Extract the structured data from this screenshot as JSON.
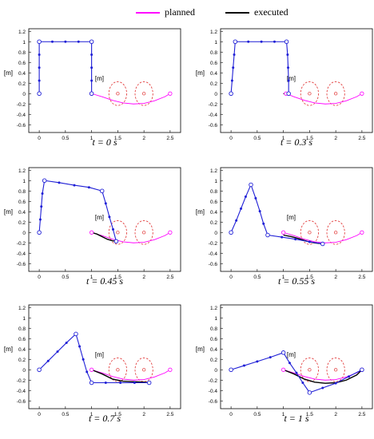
{
  "legend": {
    "planned_label": "planned",
    "executed_label": "executed",
    "planned_color": "#ff00ff",
    "executed_color": "#000000"
  },
  "colors": {
    "arm": "#1f1fd6",
    "obstacle": "#e03030",
    "axis": "#000000"
  },
  "chart_data": [
    {
      "type": "line",
      "caption": "t = 0 s",
      "xlabel": "[m]",
      "ylabel": "[m]",
      "xlim": [
        -0.2,
        2.7
      ],
      "ylim": [
        -0.75,
        1.25
      ],
      "xticks": [
        0,
        0.5,
        1,
        1.5,
        2,
        2.5
      ],
      "yticks": [
        -0.6,
        -0.4,
        -0.2,
        0,
        0.2,
        0.4,
        0.6,
        0.8,
        1,
        1.2
      ],
      "obstacles": [
        {
          "x": 1.5,
          "y": 0,
          "r": 0.17
        },
        {
          "x": 2.0,
          "y": 0,
          "r": 0.17
        }
      ],
      "series": [
        {
          "name": "planned",
          "x": [
            1.0,
            1.2,
            1.4,
            1.6,
            1.8,
            2.0,
            2.2,
            2.4,
            2.5
          ],
          "y": [
            0.0,
            -0.06,
            -0.13,
            -0.18,
            -0.2,
            -0.19,
            -0.14,
            -0.06,
            0.0
          ]
        },
        {
          "name": "executed",
          "x": [],
          "y": []
        }
      ],
      "arm": {
        "x": [
          0,
          0,
          0,
          0,
          0,
          0.25,
          0.5,
          0.75,
          1.0,
          1.0,
          1.0,
          1.0,
          1.0
        ],
        "y": [
          0,
          0.25,
          0.5,
          0.75,
          1.0,
          1.0,
          1.0,
          1.0,
          1.0,
          0.75,
          0.5,
          0.25,
          0.0
        ]
      }
    },
    {
      "type": "line",
      "caption": "t = 0.3 s",
      "xlabel": "[m]",
      "ylabel": "[m]",
      "xlim": [
        -0.2,
        2.7
      ],
      "ylim": [
        -0.75,
        1.25
      ],
      "xticks": [
        0,
        0.5,
        1,
        1.5,
        2,
        2.5
      ],
      "yticks": [
        -0.6,
        -0.4,
        -0.2,
        0,
        0.2,
        0.4,
        0.6,
        0.8,
        1,
        1.2
      ],
      "obstacles": [
        {
          "x": 1.5,
          "y": 0,
          "r": 0.17
        },
        {
          "x": 2.0,
          "y": 0,
          "r": 0.17
        }
      ],
      "series": [
        {
          "name": "planned",
          "x": [
            1.05,
            1.2,
            1.4,
            1.6,
            1.8,
            2.0,
            2.2,
            2.4,
            2.5
          ],
          "y": [
            0.0,
            -0.06,
            -0.13,
            -0.18,
            -0.2,
            -0.19,
            -0.14,
            -0.06,
            0.0
          ]
        },
        {
          "name": "executed",
          "x": [
            1.0,
            1.05,
            1.12
          ],
          "y": [
            0.0,
            -0.01,
            -0.02
          ]
        }
      ],
      "arm": {
        "x": [
          0,
          0.02,
          0.04,
          0.06,
          0.08,
          0.33,
          0.58,
          0.83,
          1.06,
          1.08,
          1.09,
          1.1,
          1.1
        ],
        "y": [
          0,
          0.25,
          0.5,
          0.75,
          1.0,
          1.0,
          1.0,
          1.0,
          1.0,
          0.75,
          0.5,
          0.25,
          0.0
        ]
      }
    },
    {
      "type": "line",
      "caption": "t = 0.45 s",
      "xlabel": "[m]",
      "ylabel": "[m]",
      "xlim": [
        -0.2,
        2.7
      ],
      "ylim": [
        -0.75,
        1.25
      ],
      "xticks": [
        0,
        0.5,
        1,
        1.5,
        2,
        2.5
      ],
      "yticks": [
        -0.6,
        -0.4,
        -0.2,
        0,
        0.2,
        0.4,
        0.6,
        0.8,
        1,
        1.2
      ],
      "obstacles": [
        {
          "x": 1.5,
          "y": 0,
          "r": 0.17
        },
        {
          "x": 2.0,
          "y": 0,
          "r": 0.17
        }
      ],
      "series": [
        {
          "name": "planned",
          "x": [
            1.0,
            1.2,
            1.4,
            1.6,
            1.8,
            2.0,
            2.2,
            2.4,
            2.5
          ],
          "y": [
            0.0,
            -0.06,
            -0.13,
            -0.18,
            -0.2,
            -0.19,
            -0.14,
            -0.06,
            0.0
          ]
        },
        {
          "name": "executed",
          "x": [
            1.0,
            1.1,
            1.2,
            1.3,
            1.4,
            1.5
          ],
          "y": [
            0.0,
            -0.03,
            -0.08,
            -0.13,
            -0.16,
            -0.17
          ]
        }
      ],
      "arm": {
        "x": [
          0,
          0.02,
          0.04,
          0.06,
          0.1,
          0.38,
          0.67,
          0.95,
          1.2,
          1.27,
          1.34,
          1.41,
          1.47
        ],
        "y": [
          0,
          0.25,
          0.5,
          0.75,
          1.0,
          0.96,
          0.91,
          0.87,
          0.8,
          0.56,
          0.3,
          0.06,
          -0.17
        ]
      }
    },
    {
      "type": "line",
      "caption": "t = 0.55 s",
      "xlabel": "[m]",
      "ylabel": "[m]",
      "xlim": [
        -0.2,
        2.7
      ],
      "ylim": [
        -0.75,
        1.25
      ],
      "xticks": [
        0,
        0.5,
        1,
        1.5,
        2,
        2.5
      ],
      "yticks": [
        -0.6,
        -0.4,
        -0.2,
        0,
        0.2,
        0.4,
        0.6,
        0.8,
        1,
        1.2
      ],
      "obstacles": [
        {
          "x": 1.5,
          "y": 0,
          "r": 0.17
        },
        {
          "x": 2.0,
          "y": 0,
          "r": 0.17
        }
      ],
      "series": [
        {
          "name": "planned",
          "x": [
            1.0,
            1.2,
            1.4,
            1.6,
            1.8,
            2.0,
            2.2,
            2.4,
            2.5
          ],
          "y": [
            0.0,
            -0.06,
            -0.13,
            -0.18,
            -0.2,
            -0.19,
            -0.14,
            -0.06,
            0.0
          ]
        },
        {
          "name": "executed",
          "x": [
            1.0,
            1.15,
            1.3,
            1.45,
            1.6,
            1.75
          ],
          "y": [
            -0.05,
            -0.08,
            -0.12,
            -0.17,
            -0.2,
            -0.22
          ]
        }
      ],
      "arm": {
        "x": [
          0,
          0.1,
          0.19,
          0.28,
          0.38,
          0.47,
          0.55,
          0.62,
          0.7,
          0.97,
          1.23,
          1.5,
          1.75
        ],
        "y": [
          0,
          0.23,
          0.46,
          0.69,
          0.92,
          0.66,
          0.41,
          0.17,
          -0.05,
          -0.09,
          -0.13,
          -0.18,
          -0.22
        ]
      }
    },
    {
      "type": "line",
      "caption": "t = 0.7 s",
      "xlabel": "[m]",
      "ylabel": "[m]",
      "xlim": [
        -0.2,
        2.7
      ],
      "ylim": [
        -0.75,
        1.25
      ],
      "xticks": [
        0,
        0.5,
        1,
        1.5,
        2,
        2.5
      ],
      "yticks": [
        -0.6,
        -0.4,
        -0.2,
        0,
        0.2,
        0.4,
        0.6,
        0.8,
        1,
        1.2
      ],
      "obstacles": [
        {
          "x": 1.5,
          "y": 0,
          "r": 0.17
        },
        {
          "x": 2.0,
          "y": 0,
          "r": 0.17
        }
      ],
      "series": [
        {
          "name": "planned",
          "x": [
            1.0,
            1.2,
            1.4,
            1.6,
            1.8,
            2.0,
            2.2,
            2.4,
            2.5
          ],
          "y": [
            0.0,
            -0.06,
            -0.13,
            -0.18,
            -0.2,
            -0.19,
            -0.14,
            -0.06,
            0.0
          ]
        },
        {
          "name": "executed",
          "x": [
            1.0,
            1.2,
            1.4,
            1.6,
            1.8,
            2.0,
            2.1
          ],
          "y": [
            0.0,
            -0.08,
            -0.18,
            -0.22,
            -0.23,
            -0.24,
            -0.25
          ]
        }
      ],
      "arm": {
        "x": [
          0,
          0.17,
          0.35,
          0.52,
          0.7,
          0.77,
          0.84,
          0.91,
          1.0,
          1.27,
          1.55,
          1.82,
          2.1
        ],
        "y": [
          0,
          0.17,
          0.35,
          0.52,
          0.69,
          0.45,
          0.2,
          -0.04,
          -0.25,
          -0.25,
          -0.25,
          -0.25,
          -0.25
        ]
      }
    },
    {
      "type": "line",
      "caption": "t = 1 s",
      "xlabel": "[m]",
      "ylabel": "[m]",
      "xlim": [
        -0.2,
        2.7
      ],
      "ylim": [
        -0.75,
        1.25
      ],
      "xticks": [
        0,
        0.5,
        1,
        1.5,
        2,
        2.5
      ],
      "yticks": [
        -0.6,
        -0.4,
        -0.2,
        0,
        0.2,
        0.4,
        0.6,
        0.8,
        1,
        1.2
      ],
      "obstacles": [
        {
          "x": 1.5,
          "y": 0,
          "r": 0.17
        },
        {
          "x": 2.0,
          "y": 0,
          "r": 0.17
        }
      ],
      "series": [
        {
          "name": "planned",
          "x": [
            1.0,
            1.2,
            1.4,
            1.6,
            1.8,
            2.0,
            2.2,
            2.4,
            2.5
          ],
          "y": [
            0.0,
            -0.06,
            -0.13,
            -0.18,
            -0.2,
            -0.19,
            -0.14,
            -0.06,
            0.0
          ]
        },
        {
          "name": "executed",
          "x": [
            1.0,
            1.2,
            1.4,
            1.6,
            1.8,
            2.0,
            2.2,
            2.4,
            2.5
          ],
          "y": [
            0.0,
            -0.08,
            -0.18,
            -0.24,
            -0.26,
            -0.25,
            -0.2,
            -0.1,
            0.0
          ]
        }
      ],
      "arm": {
        "x": [
          0,
          0.25,
          0.5,
          0.75,
          1.0,
          1.12,
          1.25,
          1.37,
          1.5,
          1.75,
          2.0,
          2.25,
          2.5
        ],
        "y": [
          0,
          0.08,
          0.16,
          0.24,
          0.33,
          0.13,
          -0.06,
          -0.25,
          -0.44,
          -0.35,
          -0.26,
          -0.13,
          0.0
        ]
      }
    }
  ]
}
